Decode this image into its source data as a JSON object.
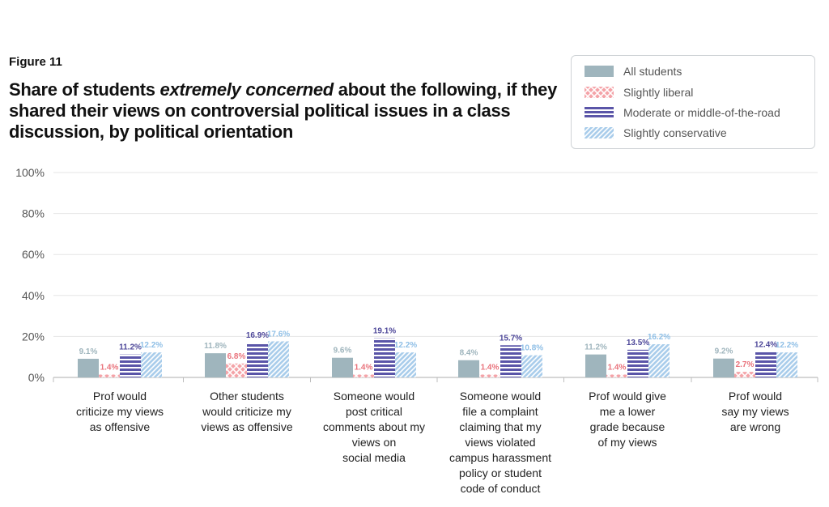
{
  "figure_label": "Figure 11",
  "title": {
    "part1": "Share of students ",
    "emphasis": "extremely concerned",
    "part2": " about the following, if they shared their views on controversial political issues in a class discussion, by political orientation"
  },
  "colors": {
    "all_students": "#9fb5bd",
    "slightly_liberal": "#f4a3a8",
    "moderate": "#5a55a8",
    "slightly_conservative": "#a9cdeb"
  },
  "chart_data": {
    "type": "bar",
    "title": "Share of students extremely concerned about the following, if they shared their views on controversial political issues in a class discussion, by political orientation",
    "xlabel": "",
    "ylabel": "",
    "ylim": [
      0,
      100
    ],
    "yticks": [
      "0%",
      "20%",
      "40%",
      "60%",
      "80%",
      "100%"
    ],
    "grid": true,
    "legend_position": "top-right",
    "categories": [
      [
        "Prof would",
        "criticize my views",
        "as offensive"
      ],
      [
        "Other students",
        "would criticize my",
        "views as offensive"
      ],
      [
        "Someone would",
        "post critical",
        "comments about my",
        "views on",
        "social media"
      ],
      [
        "Someone would",
        "file a complaint",
        "claiming that my",
        "views violated",
        "campus harassment",
        "policy or student",
        "code of conduct"
      ],
      [
        "Prof would give",
        "me a lower",
        "grade because",
        "of my views"
      ],
      [
        "Prof would",
        "say my views",
        "are wrong"
      ]
    ],
    "series": [
      {
        "name": "All students",
        "values": [
          9.1,
          11.8,
          9.6,
          8.4,
          11.2,
          9.2
        ],
        "labels": [
          "9.1%",
          "11.8%",
          "9.6%",
          "8.4%",
          "11.2%",
          "9.2%"
        ]
      },
      {
        "name": "Slightly liberal",
        "values": [
          1.4,
          6.8,
          1.4,
          1.4,
          1.4,
          2.7
        ],
        "labels": [
          "1.4%",
          "6.8%",
          "1.4%",
          "1.4%",
          "1.4%",
          "2.7%"
        ]
      },
      {
        "name": "Moderate or middle-of-the-road",
        "values": [
          11.2,
          16.9,
          19.1,
          15.7,
          13.5,
          12.4
        ],
        "labels": [
          "11.2%",
          "16.9%",
          "19.1%",
          "15.7%",
          "13.5%",
          "12.4%"
        ]
      },
      {
        "name": "Slightly conservative",
        "values": [
          12.2,
          17.6,
          12.2,
          10.8,
          16.2,
          12.2
        ],
        "labels": [
          "12.2%",
          "17.6%",
          "12.2%",
          "10.8%",
          "16.2%",
          "12.2%"
        ]
      }
    ]
  }
}
